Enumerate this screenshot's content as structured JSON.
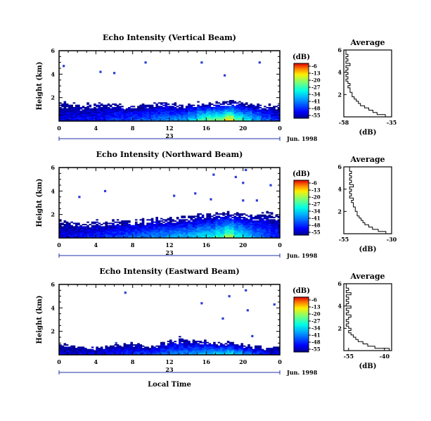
{
  "chart_data": [
    {
      "type": "heatmap",
      "title": "Echo Intensity (Vertical Beam)",
      "ylabel": "Height (km)",
      "xlabel": "",
      "x_ticks": [
        "0",
        "4",
        "8",
        "12",
        "16",
        "20",
        "0"
      ],
      "y_ticks": [
        "2",
        "4",
        "6"
      ],
      "xlim_hours": [
        0,
        24
      ],
      "ylim_km": [
        0,
        6
      ],
      "day_label": "23",
      "date_label": "Jun. 1998",
      "colorbar": {
        "unit": "(dB)",
        "ticks": [
          "-6",
          "-13",
          "-20",
          "-27",
          "-34",
          "-41",
          "-48",
          "-55"
        ]
      },
      "echo_top_km": [
        1.5,
        1.4,
        1.3,
        1.4,
        1.5,
        1.5,
        1.4,
        1.3,
        1.3,
        1.4,
        1.5,
        1.5,
        1.4,
        1.4,
        1.5,
        1.6,
        1.6,
        1.6,
        1.6,
        1.6,
        1.5,
        1.4,
        1.4,
        1.3
      ],
      "peak_db": [
        -50,
        -49,
        -48,
        -48,
        -47,
        -46,
        -45,
        -44,
        -43,
        -42,
        -40,
        -39,
        -38,
        -36,
        -33,
        -26,
        -22,
        -20,
        -14,
        -24,
        -30,
        -36,
        -42,
        -46
      ],
      "sparse_points": [
        [
          0.5,
          4.7
        ],
        [
          4.5,
          4.2
        ],
        [
          6.0,
          4.1
        ],
        [
          9.4,
          5.0
        ],
        [
          15.5,
          5.0
        ],
        [
          18.0,
          3.9
        ],
        [
          21.8,
          5.0
        ]
      ],
      "average_profile": {
        "title": "Average",
        "xlabel": "(dB)",
        "x_ticks": [
          "-58",
          "-35"
        ],
        "xlim": [
          -58,
          -35
        ],
        "y_ticks": [
          "2",
          "4",
          "6"
        ],
        "ylim": [
          0,
          6
        ],
        "heights_km": [
          0.1,
          0.3,
          0.5,
          0.7,
          0.9,
          1.1,
          1.3,
          1.5,
          1.7,
          1.9,
          2.1,
          2.3,
          2.5,
          2.7,
          2.9,
          3.1,
          3.3,
          3.5,
          3.7,
          3.9,
          4.1,
          4.3,
          4.5,
          4.7,
          4.9,
          5.1,
          5.3,
          5.5,
          5.7,
          5.9
        ],
        "values_db": [
          -38,
          -42,
          -44,
          -46,
          -48,
          -50,
          -51,
          -52,
          -53,
          -54,
          -54,
          -55,
          -55,
          -56,
          -55,
          -56,
          -57,
          -56,
          -57,
          -56,
          -57,
          -56,
          -57,
          -55,
          -57,
          -56,
          -57,
          -56,
          -57,
          -57
        ]
      }
    },
    {
      "type": "heatmap",
      "title": "Echo Intensity (Northward Beam)",
      "ylabel": "Height (km)",
      "xlabel": "",
      "x_ticks": [
        "0",
        "4",
        "8",
        "12",
        "16",
        "20",
        "0"
      ],
      "y_ticks": [
        "2",
        "4",
        "6"
      ],
      "xlim_hours": [
        0,
        24
      ],
      "ylim_km": [
        0,
        6
      ],
      "day_label": "23",
      "date_label": "Jun. 1998",
      "colorbar": {
        "unit": "(dB)",
        "ticks": [
          "-6",
          "-13",
          "-20",
          "-27",
          "-34",
          "-41",
          "-48",
          "-55"
        ]
      },
      "echo_top_km": [
        1.4,
        1.3,
        1.3,
        1.3,
        1.4,
        1.4,
        1.5,
        1.5,
        1.5,
        1.5,
        1.6,
        1.6,
        1.7,
        1.8,
        1.9,
        2.0,
        2.0,
        2.1,
        2.1,
        2.1,
        2.0,
        2.0,
        2.1,
        2.0
      ],
      "peak_db": [
        -50,
        -49,
        -48,
        -47,
        -46,
        -45,
        -44,
        -43,
        -41,
        -40,
        -38,
        -37,
        -36,
        -35,
        -34,
        -32,
        -30,
        -27,
        -20,
        -28,
        -33,
        -38,
        -42,
        -46
      ],
      "sparse_points": [
        [
          2.2,
          3.5
        ],
        [
          5.0,
          4.0
        ],
        [
          12.5,
          3.6
        ],
        [
          14.8,
          3.8
        ],
        [
          16.5,
          3.3
        ],
        [
          16.8,
          5.4
        ],
        [
          19.2,
          5.2
        ],
        [
          20.0,
          4.7
        ],
        [
          20.3,
          5.8
        ],
        [
          23.0,
          4.5
        ],
        [
          20.0,
          3.2
        ],
        [
          21.5,
          3.2
        ]
      ],
      "average_profile": {
        "title": "Average",
        "xlabel": "(dB)",
        "x_ticks": [
          "-55",
          "-30"
        ],
        "xlim": [
          -55,
          -30
        ],
        "y_ticks": [
          "2",
          "4",
          "6"
        ],
        "ylim": [
          0,
          6
        ],
        "heights_km": [
          0.1,
          0.3,
          0.5,
          0.7,
          0.9,
          1.1,
          1.3,
          1.5,
          1.7,
          1.9,
          2.1,
          2.3,
          2.5,
          2.7,
          2.9,
          3.1,
          3.3,
          3.5,
          3.7,
          3.9,
          4.1,
          4.3,
          4.5,
          4.7,
          4.9,
          5.1,
          5.3,
          5.5,
          5.7,
          5.9
        ],
        "values_db": [
          -33,
          -37,
          -40,
          -42,
          -44,
          -45,
          -46,
          -47,
          -48,
          -48,
          -49,
          -49,
          -50,
          -50,
          -51,
          -50,
          -52,
          -51,
          -52,
          -51,
          -52,
          -50,
          -52,
          -51,
          -52,
          -51,
          -52,
          -51,
          -52,
          -52
        ]
      }
    },
    {
      "type": "heatmap",
      "title": "Echo Intensity (Eastward Beam)",
      "ylabel": "Height (km)",
      "xlabel": "Local Time",
      "x_ticks": [
        "0",
        "4",
        "8",
        "12",
        "16",
        "20",
        "0"
      ],
      "y_ticks": [
        "2",
        "4",
        "6"
      ],
      "xlim_hours": [
        0,
        24
      ],
      "ylim_km": [
        0,
        6
      ],
      "day_label": "23",
      "date_label": "Jun. 1998",
      "colorbar": {
        "unit": "(dB)",
        "ticks": [
          "-6",
          "-13",
          "-20",
          "-27",
          "-34",
          "-41",
          "-48",
          "-55"
        ]
      },
      "echo_top_km": [
        0.9,
        0.7,
        0.6,
        0.5,
        0.6,
        0.7,
        0.8,
        0.9,
        0.8,
        0.7,
        0.8,
        1.0,
        1.2,
        1.4,
        1.3,
        1.2,
        1.1,
        1.0,
        1.0,
        0.9,
        0.8,
        0.7,
        0.6,
        0.6
      ],
      "peak_db": [
        -52,
        -51,
        -50,
        -50,
        -49,
        -48,
        -47,
        -46,
        -45,
        -44,
        -43,
        -42,
        -40,
        -39,
        -38,
        -36,
        -34,
        -33,
        -31,
        -35,
        -40,
        -44,
        -47,
        -50
      ],
      "sparse_points": [
        [
          6.2,
          1.0
        ],
        [
          7.2,
          5.3
        ],
        [
          15.5,
          4.4
        ],
        [
          17.8,
          3.1
        ],
        [
          18.5,
          5.0
        ],
        [
          20.3,
          5.5
        ],
        [
          20.5,
          3.8
        ],
        [
          21.0,
          1.6
        ],
        [
          23.4,
          4.3
        ]
      ],
      "average_profile": {
        "title": "Average",
        "xlabel": "(dB)",
        "x_ticks": [
          "-55",
          "-40"
        ],
        "xlim": [
          -57,
          -37
        ],
        "y_ticks": [
          "2",
          "4",
          "6"
        ],
        "ylim": [
          0,
          6
        ],
        "heights_km": [
          0.1,
          0.3,
          0.5,
          0.7,
          0.9,
          1.1,
          1.3,
          1.5,
          1.7,
          1.9,
          2.1,
          2.3,
          2.5,
          2.7,
          2.9,
          3.1,
          3.3,
          3.5,
          3.7,
          3.9,
          4.1,
          4.3,
          4.5,
          4.7,
          4.9,
          5.1,
          5.3,
          5.5,
          5.7,
          5.9
        ],
        "values_db": [
          -38,
          -44,
          -47,
          -49,
          -51,
          -52,
          -53,
          -54,
          -55,
          -54,
          -55,
          -56,
          -55,
          -56,
          -55,
          -54,
          -56,
          -55,
          -56,
          -54,
          -56,
          -55,
          -56,
          -55,
          -56,
          -54,
          -56,
          -55,
          -56,
          -56
        ]
      }
    }
  ]
}
